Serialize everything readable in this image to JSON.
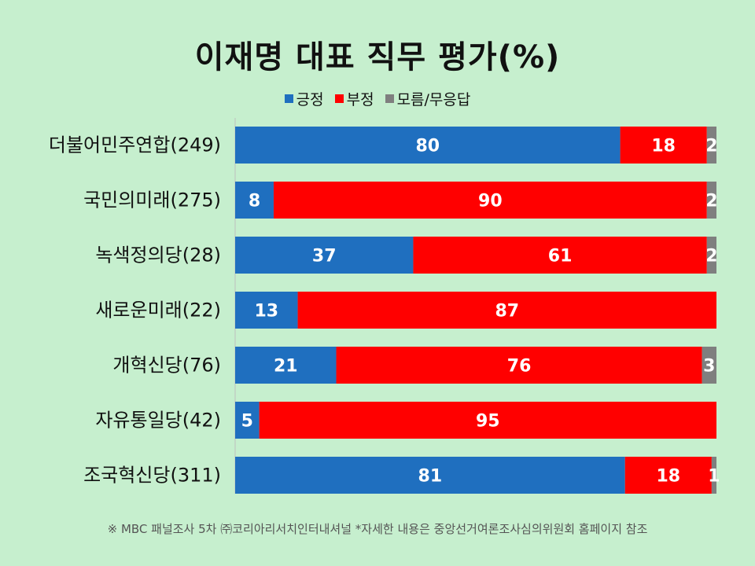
{
  "chart_data": {
    "type": "bar",
    "orientation": "horizontal",
    "stacked": true,
    "title": "이재명 대표 직무 평가(%)",
    "legend_position": "top",
    "categories": [
      "더불어민주연합(249)",
      "국민의미래(275)",
      "녹색정의당(28)",
      "새로운미래(22)",
      "개혁신당(76)",
      "자유통일당(42)",
      "조국혁신당(311)"
    ],
    "series": [
      {
        "name": "긍정",
        "color": "#1f6fbf",
        "values": [
          80,
          8,
          37,
          13,
          21,
          5,
          81
        ]
      },
      {
        "name": "부정",
        "color": "#ff0000",
        "values": [
          18,
          90,
          61,
          87,
          76,
          95,
          18
        ]
      },
      {
        "name": "모름/무응답",
        "color": "#7f7f7f",
        "values": [
          2,
          2,
          2,
          0,
          3,
          0,
          1
        ]
      }
    ],
    "xlim": [
      0,
      100
    ]
  },
  "footnote": "※ MBC 패널조사 5차 ㈜코리아리서치인터내셔널 *자세한 내용은 중앙선거여론조사심의위원회 홈페이지 참조"
}
